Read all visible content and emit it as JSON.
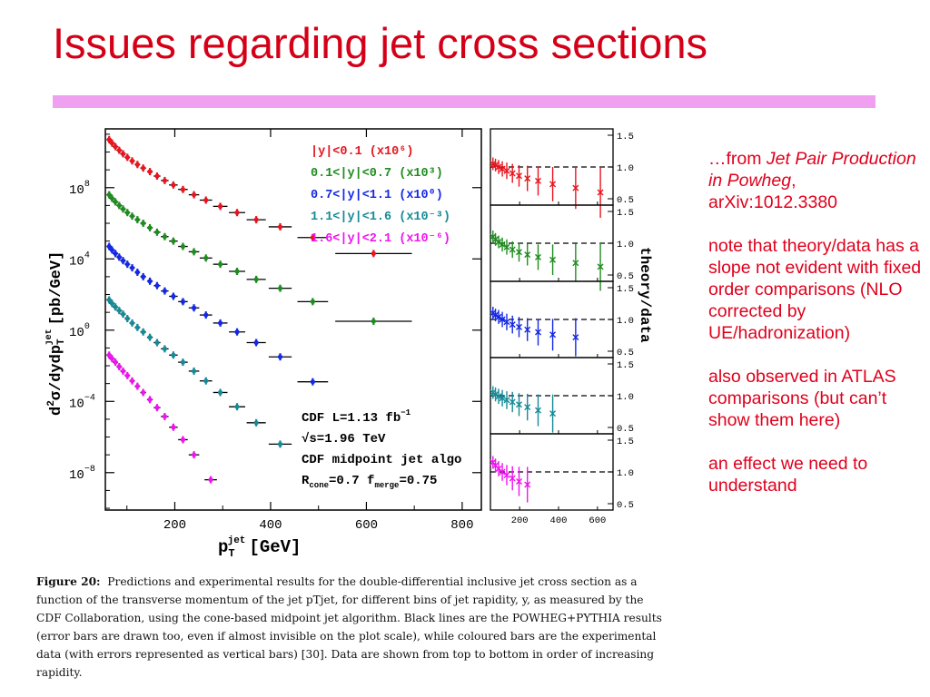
{
  "slide": {
    "title": "Issues regarding jet cross sections",
    "accent_color": "#f0a0f0",
    "title_color": "#d40018",
    "note_color": "#e0001c"
  },
  "notes": {
    "source_prefix": "…from ",
    "source_title": "Jet Pair Production in Powheg",
    "source_suffix": ", arXiv:1012.3380",
    "paragraphs": [
      "note that theory/data has a slope not evident with fixed order comparisons (NLO corrected by UE/hadronization)",
      "also observed in ATLAS comparisons (but can’t show them here)",
      "an effect we need to understand"
    ]
  },
  "caption": {
    "label": "Figure 20:",
    "text": "Predictions and experimental results for the double-differential inclusive jet cross section as a function of the transverse momentum of the jet pTjet, for different bins of jet rapidity, y, as measured by the CDF Collaboration, using the cone-based midpoint jet algorithm. Black lines are the POWHEG+PYTHIA results (error bars are drawn too, even if almost invisible on the plot scale), while coloured bars are the experimental data (with errors represented as vertical bars) [30]. Data are shown from top to bottom in order of increasing rapidity."
  },
  "chart_data": [
    {
      "type": "scatter",
      "xlabel": "p_T^jet [GeV]",
      "ylabel": "d²σ/dydp_T^jet [pb/GeV]",
      "xlim": [
        55,
        840
      ],
      "ylog": true,
      "ylim_log10": [
        -10.1,
        11.3
      ],
      "xticks": [
        200,
        400,
        600,
        800
      ],
      "xtick_labels": [
        "200",
        "400",
        "600",
        "800"
      ],
      "yticks_log10": [
        8,
        4,
        0,
        -4,
        -8
      ],
      "ytick_base": "10",
      "ytick_exponents": [
        "8",
        "4",
        "0",
        "−4",
        "−8"
      ],
      "grid": false,
      "legend_position": "top-right",
      "annotations": [
        "CDF   L=1.13 fb",
        "√s=1.96 TeV",
        "CDF midpoint jet algo",
        "R=0.7  f=0.75"
      ],
      "annotation_sup_1": "−1",
      "annotation_sub_r": "cone",
      "annotation_sub_f": "merge",
      "series": [
        {
          "name": "|y|<0.1 (x10⁶)",
          "color": "#e8141e",
          "x": [
            63,
            69,
            76,
            84,
            92,
            101,
            111,
            122,
            134,
            148,
            163,
            179,
            197,
            217,
            240,
            265,
            295,
            330,
            370,
            420,
            488,
            615
          ],
          "y_log10": [
            10.7,
            10.5,
            10.3,
            10.1,
            9.9,
            9.7,
            9.5,
            9.3,
            9.1,
            8.9,
            8.65,
            8.4,
            8.15,
            7.9,
            7.6,
            7.3,
            6.95,
            6.6,
            6.2,
            5.8,
            5.2,
            4.3
          ],
          "xerr_half": [
            3,
            3,
            3,
            4,
            4,
            4,
            5,
            5,
            6,
            6,
            7,
            8,
            9,
            10,
            11,
            13,
            15,
            17,
            20,
            24,
            32,
            80
          ]
        },
        {
          "name": "0.1<|y|<0.7 (x10³)",
          "color": "#1e8c1e",
          "x": [
            63,
            69,
            76,
            84,
            92,
            101,
            111,
            122,
            134,
            148,
            163,
            179,
            197,
            217,
            240,
            265,
            295,
            330,
            370,
            420,
            488,
            615
          ],
          "y_log10": [
            7.6,
            7.4,
            7.2,
            7.0,
            6.8,
            6.6,
            6.4,
            6.2,
            6.0,
            5.75,
            5.5,
            5.25,
            5.0,
            4.7,
            4.4,
            4.05,
            3.7,
            3.3,
            2.85,
            2.35,
            1.6,
            0.5
          ],
          "xerr_half": [
            3,
            3,
            3,
            4,
            4,
            4,
            5,
            5,
            6,
            6,
            7,
            8,
            9,
            10,
            11,
            13,
            15,
            17,
            20,
            24,
            32,
            80
          ]
        },
        {
          "name": "0.7<|y|<1.1 (x10⁰)",
          "color": "#1428e6",
          "x": [
            63,
            69,
            76,
            84,
            92,
            101,
            111,
            122,
            134,
            148,
            163,
            179,
            197,
            217,
            240,
            265,
            295,
            330,
            370,
            420,
            488
          ],
          "y_log10": [
            4.7,
            4.5,
            4.3,
            4.1,
            3.9,
            3.7,
            3.5,
            3.25,
            3.0,
            2.75,
            2.5,
            2.2,
            1.9,
            1.6,
            1.25,
            0.85,
            0.4,
            -0.1,
            -0.7,
            -1.5,
            -2.9
          ],
          "xerr_half": [
            3,
            3,
            3,
            4,
            4,
            4,
            5,
            5,
            6,
            6,
            7,
            8,
            9,
            10,
            11,
            13,
            15,
            17,
            20,
            24,
            32
          ]
        },
        {
          "name": "1.1<|y|<1.6 (x10⁻³)",
          "color": "#168a96",
          "x": [
            63,
            69,
            76,
            84,
            92,
            101,
            111,
            122,
            134,
            148,
            163,
            179,
            197,
            217,
            240,
            265,
            295,
            330,
            370,
            420
          ],
          "y_log10": [
            1.7,
            1.5,
            1.3,
            1.1,
            0.9,
            0.65,
            0.4,
            0.15,
            -0.1,
            -0.4,
            -0.7,
            -1.05,
            -1.4,
            -1.8,
            -2.3,
            -2.85,
            -3.5,
            -4.3,
            -5.2,
            -6.4
          ],
          "xerr_half": [
            3,
            3,
            3,
            4,
            4,
            4,
            5,
            5,
            6,
            6,
            7,
            8,
            9,
            10,
            11,
            13,
            15,
            17,
            20,
            24
          ]
        },
        {
          "name": "1.6<|y|<2.1 (x10⁻⁶)",
          "color": "#ee14ee",
          "x": [
            63,
            69,
            76,
            84,
            92,
            101,
            111,
            122,
            134,
            148,
            163,
            179,
            197,
            217,
            240,
            275
          ],
          "y_log10": [
            -1.4,
            -1.6,
            -1.8,
            -2.05,
            -2.3,
            -2.55,
            -2.85,
            -3.15,
            -3.5,
            -3.9,
            -4.35,
            -4.85,
            -5.45,
            -6.15,
            -7.0,
            -8.4
          ],
          "xerr_half": [
            3,
            3,
            3,
            4,
            4,
            4,
            5,
            5,
            6,
            6,
            7,
            8,
            9,
            10,
            11,
            13
          ]
        }
      ]
    },
    {
      "type": "scatter",
      "ylabel": "theory/data",
      "xlim": [
        50,
        680
      ],
      "xticks": [
        200,
        400,
        600
      ],
      "xtick_labels": [
        "200",
        "400",
        "600"
      ],
      "yticks": [
        0.5,
        1.0,
        1.5
      ],
      "ytick_labels": [
        "0.5",
        "1.0",
        "1.5"
      ],
      "reference_line": 1.0,
      "grid": false,
      "panels": [
        {
          "color": "#e8141e",
          "x": [
            63,
            76,
            92,
            111,
            134,
            163,
            197,
            240,
            295,
            370,
            488,
            615
          ],
          "y": [
            1.05,
            1.03,
            1.0,
            0.97,
            0.94,
            0.9,
            0.86,
            0.82,
            0.78,
            0.73,
            0.67,
            0.6
          ],
          "yerr": [
            0.1,
            0.1,
            0.11,
            0.12,
            0.13,
            0.15,
            0.17,
            0.2,
            0.23,
            0.27,
            0.33,
            0.4
          ]
        },
        {
          "color": "#1e8c1e",
          "x": [
            63,
            76,
            92,
            111,
            134,
            163,
            197,
            240,
            295,
            370,
            488,
            615
          ],
          "y": [
            1.1,
            1.06,
            1.02,
            0.98,
            0.94,
            0.9,
            0.86,
            0.82,
            0.78,
            0.74,
            0.69,
            0.63
          ],
          "yerr": [
            0.1,
            0.1,
            0.1,
            0.11,
            0.12,
            0.13,
            0.15,
            0.17,
            0.2,
            0.24,
            0.3,
            0.38
          ]
        },
        {
          "color": "#1428e6",
          "x": [
            63,
            76,
            92,
            111,
            134,
            163,
            197,
            240,
            295,
            370,
            488
          ],
          "y": [
            1.1,
            1.07,
            1.04,
            1.0,
            0.96,
            0.92,
            0.88,
            0.84,
            0.8,
            0.76,
            0.72
          ],
          "yerr": [
            0.1,
            0.1,
            0.11,
            0.12,
            0.13,
            0.14,
            0.16,
            0.18,
            0.21,
            0.25,
            0.3
          ]
        },
        {
          "color": "#168a96",
          "x": [
            63,
            76,
            92,
            111,
            134,
            163,
            197,
            240,
            295,
            370
          ],
          "y": [
            1.05,
            1.02,
            0.99,
            0.96,
            0.93,
            0.9,
            0.86,
            0.82,
            0.77,
            0.72
          ],
          "yerr": [
            0.1,
            0.11,
            0.12,
            0.13,
            0.14,
            0.16,
            0.18,
            0.21,
            0.25,
            0.3
          ]
        },
        {
          "color": "#ee14ee",
          "x": [
            63,
            76,
            92,
            111,
            134,
            163,
            197,
            240
          ],
          "y": [
            1.15,
            1.1,
            1.05,
            1.0,
            0.95,
            0.9,
            0.85,
            0.8
          ],
          "yerr": [
            0.1,
            0.11,
            0.12,
            0.14,
            0.16,
            0.19,
            0.23,
            0.28
          ]
        }
      ]
    }
  ]
}
